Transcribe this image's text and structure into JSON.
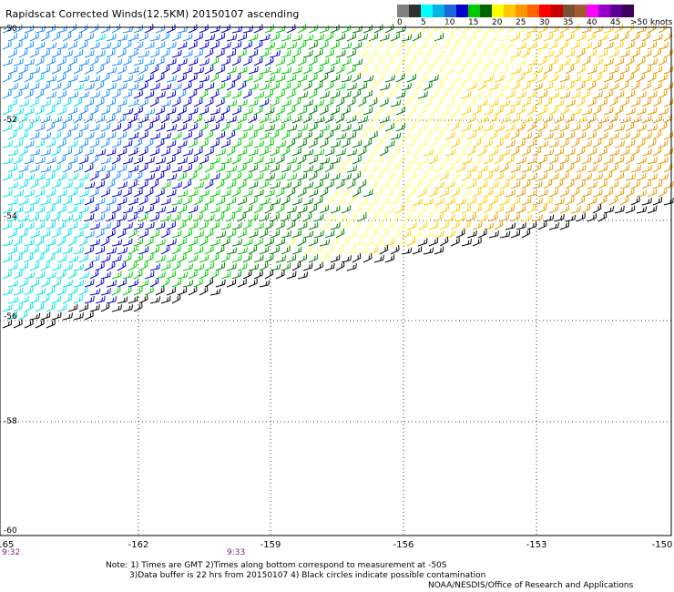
{
  "title": "Rapidscat Corrected Winds(12.5KM) 20150107 ascending",
  "legend": {
    "colors": [
      "#808080",
      "#303030",
      "#00ffff",
      "#00b4e6",
      "#1e64dc",
      "#0000c8",
      "#00c800",
      "#006400",
      "#ffff00",
      "#ffc800",
      "#ff9600",
      "#ff6400",
      "#ff0000",
      "#c80000",
      "#785032",
      "#a05a2c",
      "#ff00ff",
      "#9600c8",
      "#5a0096",
      "#3c005a"
    ],
    "labels": [
      "0",
      "5",
      "10",
      "15",
      "20",
      "25",
      "30",
      "35",
      "40",
      "45",
      ">50 knots"
    ]
  },
  "x_ticks": [
    "-165",
    "-162",
    "-159",
    "-156",
    "-153",
    "-150"
  ],
  "y_ticks": [
    "-50",
    "-52",
    "-54",
    "-56",
    "-58",
    "-60"
  ],
  "times": [
    "9:32",
    "9:33"
  ],
  "notes": {
    "line1": "Note: 1) Times are GMT 2)Times along bottom correspond to measurement at -50S",
    "line2": "3)Data buffer is 22 hrs from 20150107 4) Black circles indicate possible contamination",
    "line3": "NOAA/NESDIS/Office of Research and Applications"
  },
  "map": {
    "lon_range": [
      -165,
      -150
    ],
    "lat_range": [
      -60,
      -50
    ],
    "swath_color_stops": [
      "#00e5e5",
      "#1e90ff",
      "#0000cd",
      "#00cc00",
      "#008000",
      "#ffff66",
      "#ffcc00",
      "#e69a00"
    ],
    "barb_black": "#000000"
  }
}
